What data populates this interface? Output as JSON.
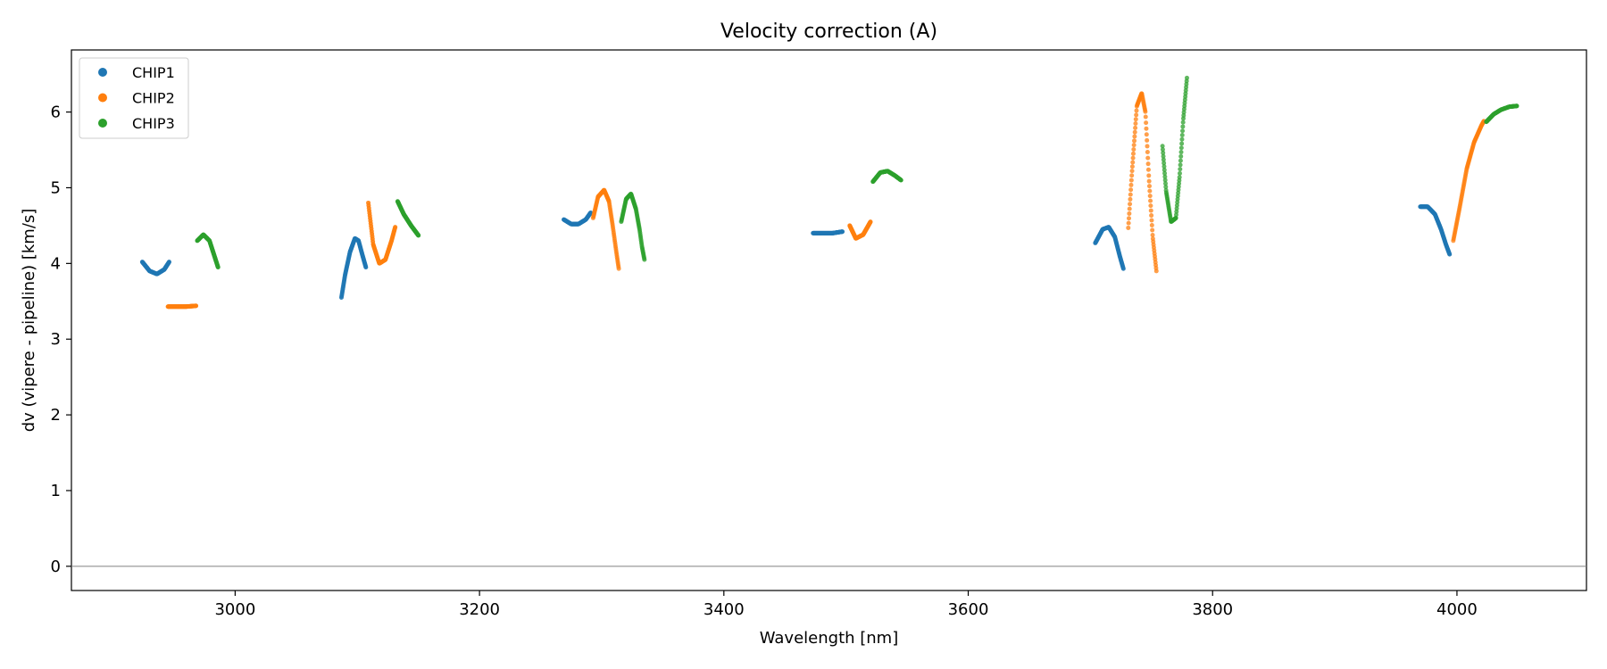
{
  "chart_data": {
    "type": "scatter",
    "title": "Velocity correction (A)",
    "xlabel": "Wavelength [nm]",
    "ylabel": "dv (vipere - pipeline) [km/s]",
    "xlim": [
      2866,
      4106
    ],
    "ylim": [
      -0.32,
      6.82
    ],
    "xticks": [
      3000,
      3200,
      3400,
      3600,
      3800,
      4000
    ],
    "yticks": [
      0,
      1,
      2,
      3,
      4,
      5,
      6
    ],
    "reference_line_y": 0,
    "legend": {
      "position": "top-left",
      "entries": [
        "CHIP1",
        "CHIP2",
        "CHIP3"
      ]
    },
    "series": [
      {
        "name": "CHIP1",
        "color": "#1f77b4",
        "segments": [
          {
            "x": [
              2924,
              2930,
              2936,
              2942,
              2946
            ],
            "y": [
              4.02,
              3.9,
              3.86,
              3.92,
              4.02
            ]
          },
          {
            "x": [
              3087,
              3090,
              3094,
              3098,
              3101,
              3104,
              3107
            ],
            "y": [
              3.55,
              3.85,
              4.15,
              4.33,
              4.3,
              4.12,
              3.95
            ]
          },
          {
            "x": [
              3269,
              3275,
              3281,
              3287,
              3291
            ],
            "y": [
              4.58,
              4.52,
              4.52,
              4.58,
              4.67
            ]
          },
          {
            "x": [
              3473,
              3481,
              3489,
              3497
            ],
            "y": [
              4.4,
              4.4,
              4.4,
              4.42
            ]
          },
          {
            "x": [
              3704,
              3710,
              3715,
              3720,
              3724,
              3727
            ],
            "y": [
              4.27,
              4.45,
              4.48,
              4.35,
              4.1,
              3.93
            ]
          },
          {
            "x": [
              3970,
              3976,
              3982,
              3987,
              3991,
              3994
            ],
            "y": [
              4.75,
              4.75,
              4.65,
              4.45,
              4.25,
              4.12
            ]
          }
        ]
      },
      {
        "name": "CHIP2",
        "color": "#ff7f0e",
        "segments": [
          {
            "x": [
              2945,
              2952,
              2960,
              2968
            ],
            "y": [
              3.43,
              3.43,
              3.43,
              3.44
            ]
          },
          {
            "x": [
              3109,
              3113,
              3118,
              3123,
              3128,
              3131
            ],
            "y": [
              4.8,
              4.25,
              4.0,
              4.05,
              4.3,
              4.48
            ]
          },
          {
            "x": [
              3293,
              3297,
              3302,
              3306,
              3309,
              3312,
              3314
            ],
            "y": [
              4.6,
              4.88,
              4.97,
              4.82,
              4.5,
              4.15,
              3.93
            ]
          },
          {
            "x": [
              3503,
              3508,
              3514,
              3520
            ],
            "y": [
              4.5,
              4.33,
              4.38,
              4.55
            ]
          },
          {
            "x": [
              3731,
              3734,
              3738,
              3742,
              3745,
              3748,
              3751,
              3754
            ],
            "y": [
              4.47,
              5.2,
              6.08,
              6.25,
              6.0,
              5.1,
              4.35,
              3.9
            ]
          },
          {
            "x": [
              3997,
              4002,
              4008,
              4014,
              4020,
              4022
            ],
            "y": [
              4.3,
              4.72,
              5.25,
              5.6,
              5.82,
              5.88
            ]
          }
        ]
      },
      {
        "name": "CHIP3",
        "color": "#2ca02c",
        "segments": [
          {
            "x": [
              2969,
              2974,
              2979,
              2983,
              2986
            ],
            "y": [
              4.3,
              4.38,
              4.3,
              4.1,
              3.95
            ]
          },
          {
            "x": [
              3133,
              3138,
              3144,
              3150
            ],
            "y": [
              4.82,
              4.65,
              4.5,
              4.37
            ]
          },
          {
            "x": [
              3316,
              3320,
              3324,
              3328,
              3331,
              3333,
              3335
            ],
            "y": [
              4.55,
              4.85,
              4.92,
              4.72,
              4.45,
              4.22,
              4.05
            ]
          },
          {
            "x": [
              3522,
              3528,
              3534,
              3540,
              3545
            ],
            "y": [
              5.08,
              5.2,
              5.22,
              5.16,
              5.1
            ]
          },
          {
            "x": [
              3759,
              3762,
              3766,
              3770,
              3773,
              3776,
              3779
            ],
            "y": [
              5.55,
              4.95,
              4.55,
              4.6,
              5.15,
              5.9,
              6.45
            ]
          },
          {
            "x": [
              4024,
              4030,
              4036,
              4043,
              4049
            ],
            "y": [
              5.87,
              5.97,
              6.03,
              6.07,
              6.08
            ]
          }
        ]
      }
    ]
  }
}
